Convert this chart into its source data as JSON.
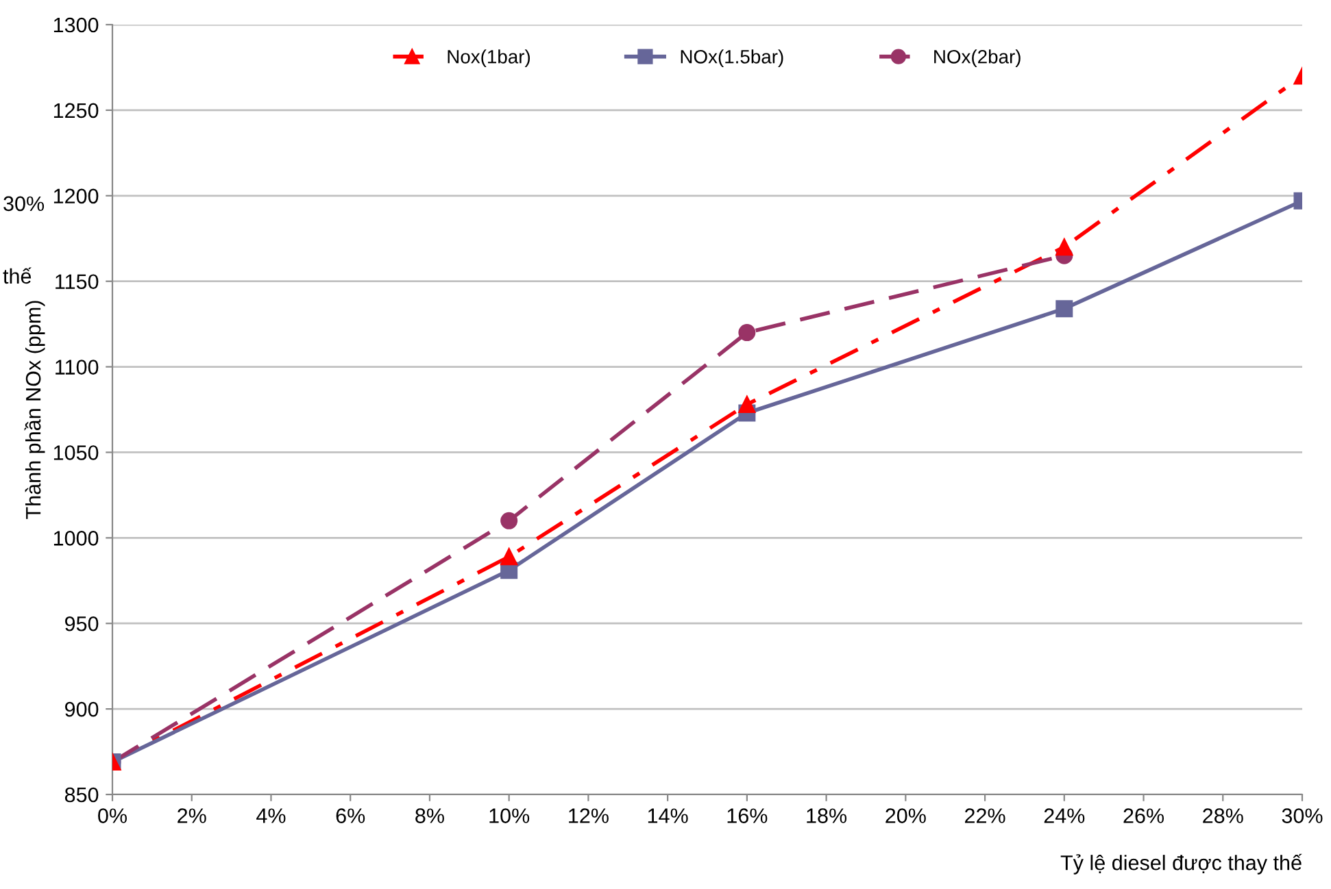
{
  "chart_data": {
    "type": "line",
    "xlabel": "Tỷ lệ diesel được thay thế",
    "ylabel": "Thành phần NOx (ppm)",
    "xlim": [
      0,
      30
    ],
    "xticks": [
      {
        "value": 0,
        "label": "0%"
      },
      {
        "value": 2,
        "label": "2%"
      },
      {
        "value": 4,
        "label": "4%"
      },
      {
        "value": 6,
        "label": "6%"
      },
      {
        "value": 8,
        "label": "8%"
      },
      {
        "value": 10,
        "label": "10%"
      },
      {
        "value": 12,
        "label": "12%"
      },
      {
        "value": 14,
        "label": "14%"
      },
      {
        "value": 16,
        "label": "16%"
      },
      {
        "value": 18,
        "label": "18%"
      },
      {
        "value": 20,
        "label": "20%"
      },
      {
        "value": 22,
        "label": "22%"
      },
      {
        "value": 24,
        "label": "24%"
      },
      {
        "value": 26,
        "label": "26%"
      },
      {
        "value": 28,
        "label": "28%"
      },
      {
        "value": 30,
        "label": "30%"
      }
    ],
    "ylim": [
      850,
      1300
    ],
    "yticks": [
      850,
      900,
      950,
      1000,
      1050,
      1100,
      1150,
      1200,
      1250,
      1300
    ],
    "grid": "y",
    "legend": "top",
    "annotations": [
      "30%",
      "thế"
    ],
    "series": [
      {
        "name": "Nox(1bar)",
        "color": "#ff0000",
        "x": [
          0,
          10,
          16,
          24,
          30
        ],
        "values": [
          869,
          989,
          1078,
          1170,
          1270
        ],
        "marker": "triangle",
        "line_style": "dashdot"
      },
      {
        "name": "NOx(1.5bar)",
        "color": "#666699",
        "x": [
          0,
          10,
          16,
          24,
          30
        ],
        "values": [
          869,
          981,
          1073,
          1134,
          1197
        ],
        "marker": "square",
        "line_style": "solid"
      },
      {
        "name": "NOx(2bar)",
        "color": "#993366",
        "x": [
          0,
          10,
          16,
          24
        ],
        "values": [
          869,
          1010,
          1120,
          1165
        ],
        "marker": "circle",
        "line_style": "dashed"
      }
    ]
  }
}
